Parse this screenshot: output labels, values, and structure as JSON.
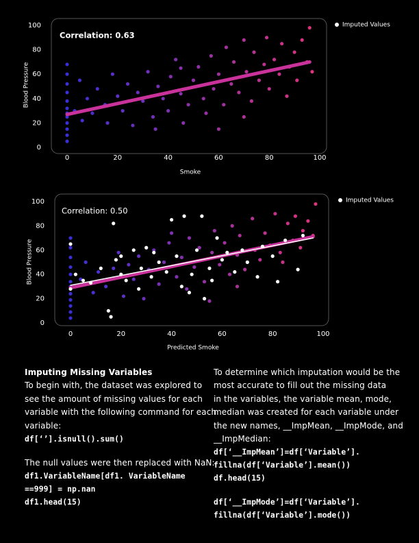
{
  "chart_data": [
    {
      "type": "scatter",
      "annotation": "Correlation: 0.63",
      "xlabel": "Smoke",
      "ylabel": "Blood Pressure",
      "xlim": [
        0,
        100
      ],
      "ylim": [
        0,
        100
      ],
      "xticks": [
        0,
        20,
        40,
        60,
        80,
        100
      ],
      "yticks": [
        0,
        20,
        40,
        60,
        80,
        100
      ],
      "colormap": [
        "#3a2fd6",
        "#e2337a"
      ],
      "x": [
        0,
        0,
        0,
        0,
        0,
        0,
        0,
        0,
        0,
        0,
        0,
        0,
        3,
        5,
        6,
        8,
        10,
        12,
        15,
        16,
        18,
        20,
        22,
        24,
        26,
        28,
        30,
        32,
        34,
        36,
        38,
        40,
        41,
        43,
        45,
        46,
        48,
        50,
        52,
        54,
        55,
        57,
        58,
        60,
        62,
        63,
        65,
        66,
        68,
        70,
        71,
        73,
        74,
        76,
        78,
        79,
        80,
        82,
        84,
        85,
        87,
        88,
        90,
        91,
        93,
        95,
        96,
        97,
        60,
        45,
        35,
        70
      ],
      "y": [
        5,
        10,
        15,
        20,
        25,
        28,
        32,
        38,
        45,
        52,
        60,
        68,
        30,
        55,
        22,
        40,
        28,
        48,
        35,
        20,
        60,
        42,
        30,
        52,
        18,
        45,
        38,
        62,
        25,
        50,
        40,
        30,
        58,
        72,
        44,
        20,
        35,
        55,
        66,
        40,
        28,
        75,
        48,
        60,
        35,
        82,
        52,
        70,
        45,
        88,
        62,
        38,
        78,
        55,
        68,
        90,
        48,
        72,
        60,
        85,
        42,
        66,
        78,
        55,
        88,
        70,
        98,
        62,
        15,
        65,
        15,
        25
      ],
      "trendlines": [
        {
          "color": "#c8329a",
          "x": [
            0,
            96
          ],
          "y": [
            27,
            70
          ]
        }
      ],
      "imputed": {
        "name": "Imputed Values",
        "color": "#ffffff",
        "x": [],
        "y": []
      }
    },
    {
      "type": "scatter",
      "annotation": "Correlation: 0.50",
      "xlabel": "Predicted Smoke",
      "ylabel": "Blood Pressure",
      "xlim": [
        0,
        100
      ],
      "ylim": [
        0,
        100
      ],
      "xticks": [
        0,
        20,
        40,
        60,
        80,
        100
      ],
      "yticks": [
        0,
        20,
        40,
        60,
        80,
        100
      ],
      "colormap": [
        "#3a2fd6",
        "#e2337a"
      ],
      "x": [
        0,
        0,
        0,
        0,
        0,
        0,
        0,
        0,
        0,
        0,
        0,
        0,
        4,
        6,
        9,
        11,
        14,
        17,
        19,
        21,
        23,
        25,
        27,
        29,
        31,
        33,
        35,
        37,
        39,
        42,
        44,
        46,
        47,
        49,
        51,
        53,
        56,
        57,
        59,
        61,
        63,
        64,
        66,
        67,
        69,
        72,
        73,
        75,
        77,
        79,
        81,
        83,
        84,
        86,
        88,
        89,
        91,
        92,
        94,
        96,
        97,
        55,
        40,
        66
      ],
      "y": [
        4,
        9,
        14,
        19,
        24,
        30,
        34,
        40,
        46,
        54,
        62,
        70,
        36,
        50,
        25,
        42,
        30,
        45,
        58,
        22,
        48,
        36,
        55,
        20,
        44,
        60,
        32,
        50,
        66,
        38,
        54,
        28,
        70,
        46,
        62,
        34,
        58,
        76,
        48,
        66,
        40,
        80,
        56,
        72,
        44,
        86,
        60,
        52,
        74,
        64,
        90,
        58,
        50,
        82,
        68,
        88,
        62,
        76,
        84,
        72,
        98,
        18,
        74,
        30
      ],
      "trendlines": [
        {
          "color": "#c8329a",
          "x": [
            0,
            96
          ],
          "y": [
            29,
            71
          ]
        },
        {
          "color": "#ffffff",
          "x": [
            0,
            96
          ],
          "y": [
            31,
            70
          ]
        }
      ],
      "imputed": {
        "name": "Imputed Values",
        "color": "#ffffff",
        "x": [
          0,
          0,
          2,
          5,
          8,
          12,
          15,
          16,
          17,
          18,
          20,
          22,
          25,
          27,
          28,
          30,
          32,
          35,
          38,
          40,
          42,
          44,
          45,
          48,
          50,
          52,
          55,
          56,
          58,
          60,
          62,
          65,
          68,
          70,
          74,
          76,
          80,
          82,
          85,
          90,
          92,
          20,
          33,
          47,
          53
        ],
        "y": [
          65,
          28,
          40,
          35,
          33,
          45,
          10,
          5,
          82,
          52,
          40,
          35,
          60,
          28,
          45,
          62,
          38,
          50,
          42,
          85,
          55,
          30,
          88,
          40,
          60,
          88,
          45,
          35,
          70,
          52,
          58,
          42,
          60,
          50,
          38,
          63,
          55,
          34,
          68,
          44,
          72,
          55,
          58,
          25,
          20
        ]
      }
    }
  ],
  "article": {
    "left": [
      {
        "kind": "heading",
        "lines": [
          "Imputing Missing Variables"
        ]
      },
      {
        "kind": "paragraph",
        "lines": [
          "To begin with, the dataset was explored to",
          "see the amount of missing values for each",
          "variable with the following command for each",
          "variable:"
        ]
      },
      {
        "kind": "code",
        "lines": [
          "df[‘’].isnull().sum()"
        ]
      },
      {
        "kind": "paragraph",
        "lines": [
          "The null values were then replaced with NaN:"
        ],
        "gap": true
      },
      {
        "kind": "code",
        "lines": [
          "df1.VariableName[df1. VariableName",
          "==999] = np.nan",
          "df1.head(15)"
        ]
      }
    ],
    "right": [
      {
        "kind": "paragraph",
        "lines": [
          "To determine which imputation would be the",
          "most accurate to fill out the missing data",
          "in the variables, the variable mean, mode,",
          "median was created for each variable under",
          "the new names, __ImpMean, __ImpMode, and",
          "__ImpMedian:"
        ]
      },
      {
        "kind": "code",
        "lines": [
          "df[‘__ImpMean’]=df[‘Variable’].",
          "fillna(df[‘Variable’].mean())",
          "df.head(15)"
        ]
      },
      {
        "kind": "code",
        "lines": [
          "df[‘__ImpMode’]=df[‘Variable’].",
          "fillna(df[‘Variable’].mode())"
        ],
        "gap": true
      }
    ]
  }
}
